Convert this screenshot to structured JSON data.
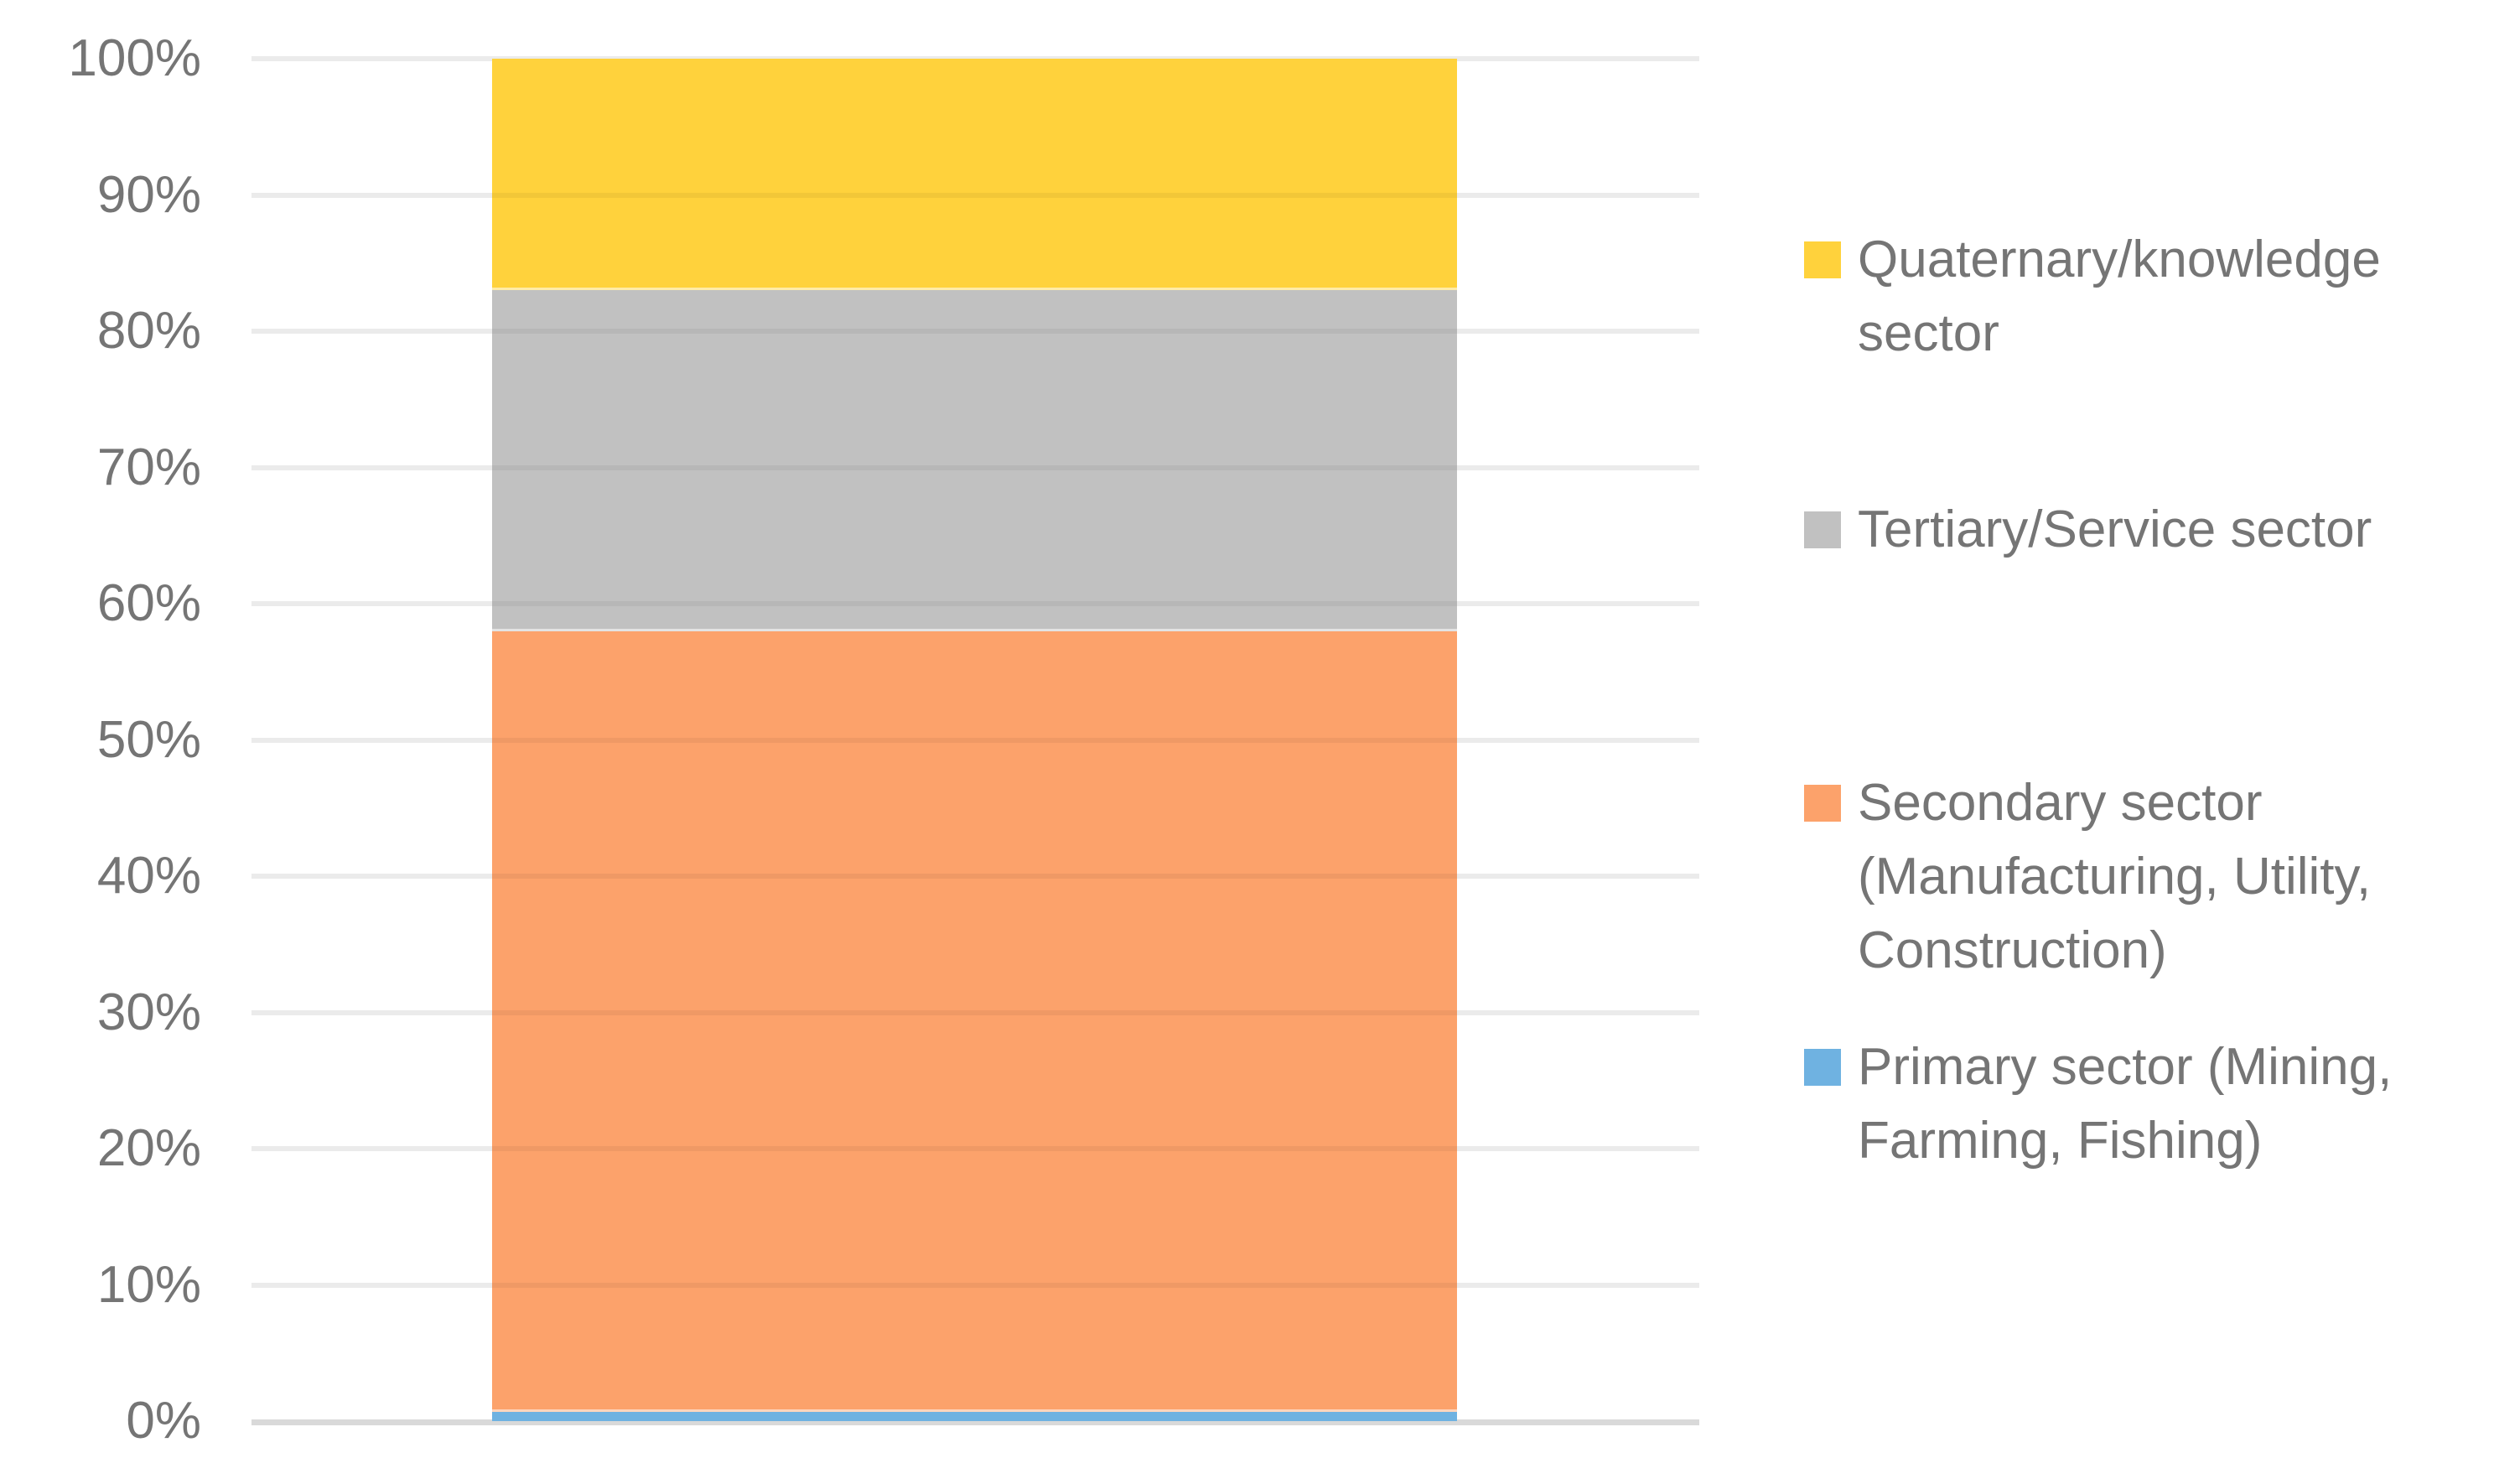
{
  "chart_data": {
    "type": "bar",
    "subtype": "stacked-100-percent",
    "title": "",
    "xlabel": "",
    "ylabel": "",
    "categories": [
      ""
    ],
    "series": [
      {
        "name": "Primary sector (Mining, Farming, Fishing)",
        "color": "#6FB2E1",
        "values": [
          0.7
        ]
      },
      {
        "name": "Secondary sector (Manufacturing, Utility, Construction)",
        "color": "#FCA26B",
        "values": [
          57.3
        ]
      },
      {
        "name": "Tertiary/Service sector",
        "color": "#C1C1C1",
        "values": [
          25
        ]
      },
      {
        "name": "Quaternary/knowledge sector",
        "color": "#FFD23C",
        "values": [
          17
        ]
      }
    ],
    "ylim": [
      0,
      100
    ],
    "yticks": [
      "0%",
      "10%",
      "20%",
      "30%",
      "40%",
      "50%",
      "60%",
      "70%",
      "80%",
      "90%",
      "100%"
    ],
    "grid": true,
    "legend_position": "right"
  },
  "legend": {
    "items": [
      {
        "label": "Quaternary/knowledge sector",
        "color": "#FFD23C"
      },
      {
        "label": "Tertiary/Service sector",
        "color": "#C1C1C1"
      },
      {
        "label": "Secondary sector (Manufacturing, Utility, Construction)",
        "color": "#FCA26B"
      },
      {
        "label": "Primary sector (Mining, Farming, Fishing)",
        "color": "#6FB2E1"
      }
    ]
  },
  "colors": {
    "gridline": "#EBEBEB",
    "axis_line": "#D9D9D9",
    "tick_text": "#757575",
    "legend_text": "#757575",
    "background": "#FFFFFF"
  }
}
